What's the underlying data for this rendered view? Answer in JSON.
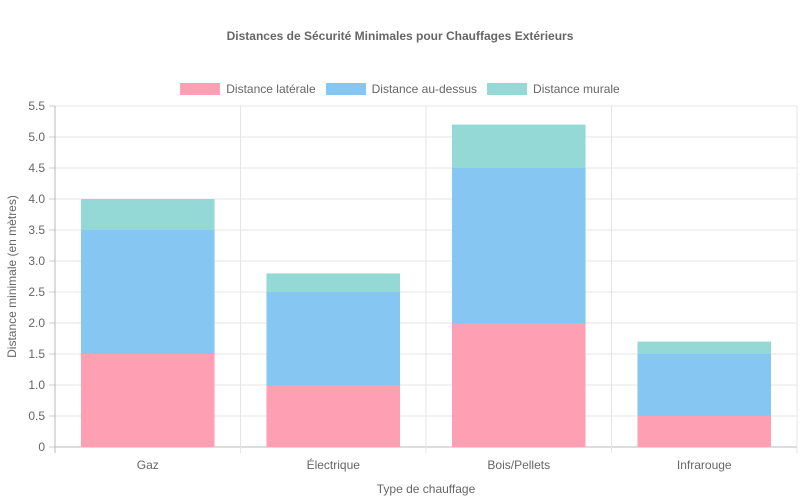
{
  "chart_data": {
    "type": "bar",
    "stacked": true,
    "title": "Distances de Sécurité Minimales pour Chauffages Extérieurs",
    "xlabel": "Type de chauffage",
    "ylabel": "Distance minimale (en mètres)",
    "categories": [
      "Gaz",
      "Électrique",
      "Bois/Pellets",
      "Infrarouge"
    ],
    "series": [
      {
        "name": "Distance latérale",
        "color": "#ff9fb4",
        "values": [
          1.5,
          1.0,
          2.0,
          0.5
        ]
      },
      {
        "name": "Distance au-dessus",
        "color": "#86c6f2",
        "values": [
          2.0,
          1.5,
          2.5,
          1.0
        ]
      },
      {
        "name": "Distance murale",
        "color": "#94d9d5",
        "values": [
          0.5,
          0.3,
          0.7,
          0.2
        ]
      }
    ],
    "ylim": [
      0,
      5.5
    ],
    "yticks": [
      "0",
      "0.5",
      "1.0",
      "1.5",
      "2.0",
      "2.5",
      "3.0",
      "3.5",
      "4.0",
      "4.5",
      "5.0",
      "5.5"
    ],
    "grid": true,
    "legend_position": "top"
  }
}
